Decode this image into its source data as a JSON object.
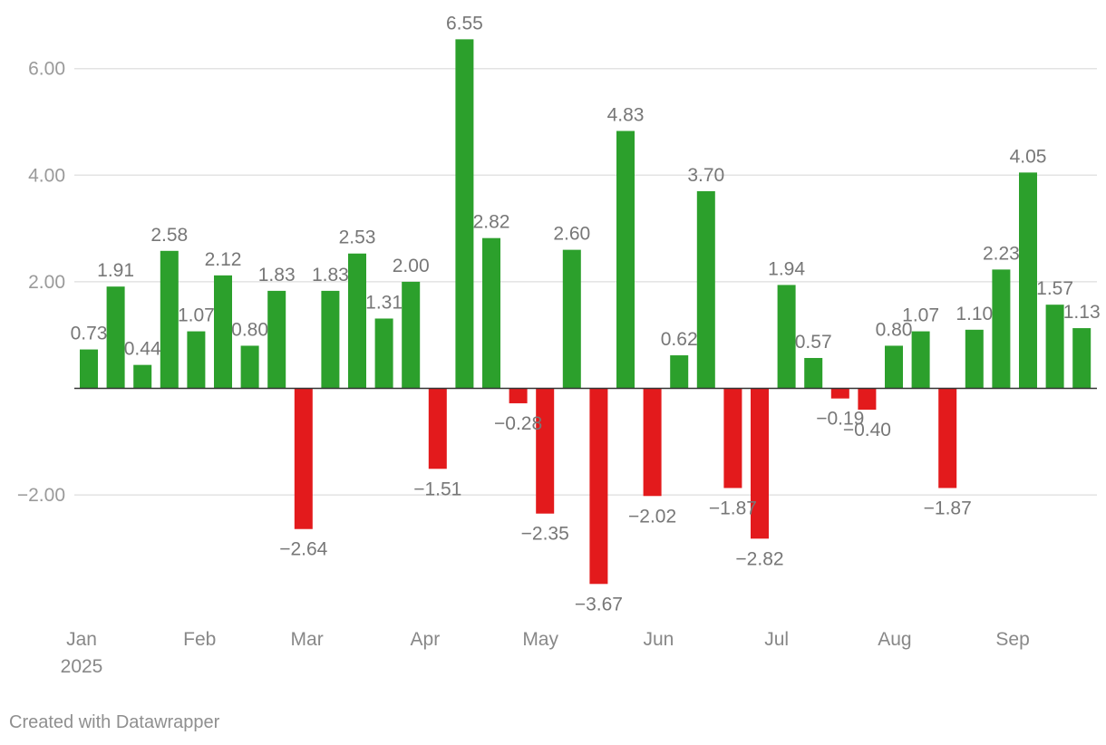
{
  "chart_data": {
    "type": "bar",
    "colors": {
      "positive": "#2ca02c",
      "negative": "#e31a1c",
      "grid": "#e3e3e3",
      "baseline": "#333333",
      "tick_text": "#9a9a9a",
      "axis_text": "#888888",
      "label_text": "#777777"
    },
    "values": [
      0.73,
      1.91,
      0.44,
      2.58,
      1.07,
      2.12,
      0.8,
      1.83,
      -2.64,
      1.83,
      2.53,
      1.31,
      2.0,
      -1.51,
      6.55,
      2.82,
      -0.28,
      -2.35,
      2.6,
      -3.67,
      4.83,
      -2.02,
      0.62,
      3.7,
      -1.87,
      -2.82,
      1.94,
      0.57,
      -0.19,
      -0.4,
      0.8,
      1.07,
      -1.87,
      1.1,
      2.23,
      4.05,
      1.57,
      1.13
    ],
    "data_labels": [
      "0.73",
      "1.91",
      "0.44",
      "2.58",
      "1.07",
      "2.12",
      "0.80",
      "1.83",
      "−2.64",
      "1.83",
      "2.53",
      "1.31",
      "2.00",
      "−1.51",
      "6.55",
      "2.82",
      "−0.28",
      "−2.35",
      "2.60",
      "−3.67",
      "4.83",
      "−2.02",
      "0.62",
      "3.70",
      "−1.87",
      "−2.82",
      "1.94",
      "0.57",
      "−0.19",
      "−0.40",
      "0.80",
      "1.07",
      "−1.87",
      "1.10",
      "2.23",
      "4.05",
      "1.57",
      "1.13"
    ],
    "y_ticks": [
      {
        "value": 6,
        "label": "6.00"
      },
      {
        "value": 4,
        "label": "4.00"
      },
      {
        "value": 2,
        "label": "2.00"
      },
      {
        "value": -2,
        "label": "−2.00"
      }
    ],
    "x_ticks": [
      {
        "index": 0,
        "label": "Jan",
        "sublabel": "2025"
      },
      {
        "index": 4.4,
        "label": "Feb"
      },
      {
        "index": 8.4,
        "label": "Mar"
      },
      {
        "index": 12.8,
        "label": "Apr"
      },
      {
        "index": 17.1,
        "label": "May"
      },
      {
        "index": 21.5,
        "label": "Jun"
      },
      {
        "index": 25.9,
        "label": "Jul"
      },
      {
        "index": 30.3,
        "label": "Aug"
      },
      {
        "index": 34.7,
        "label": "Sep"
      }
    ],
    "ylim": [
      -4.2,
      7.2
    ],
    "grid": true,
    "title": "",
    "xlabel": "",
    "ylabel": ""
  },
  "footer": {
    "credit": "Created with Datawrapper"
  }
}
